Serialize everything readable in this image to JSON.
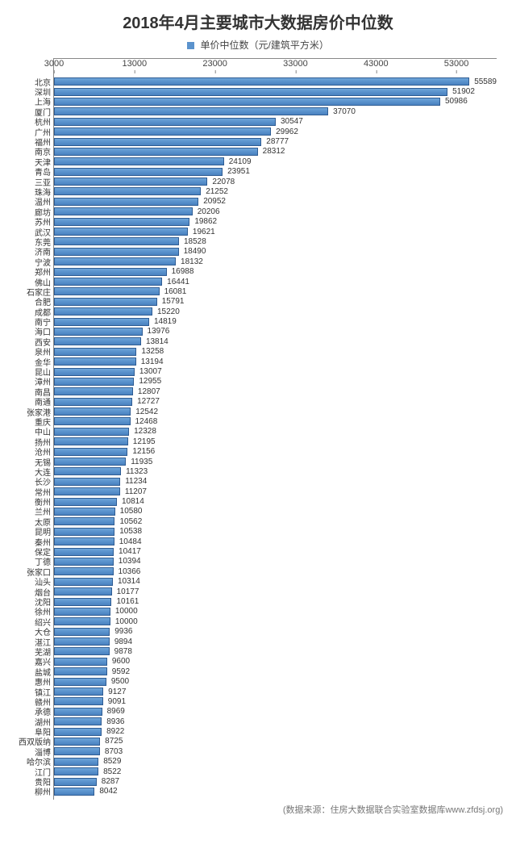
{
  "chart": {
    "type": "bar-horizontal",
    "title": "2018年4月主要城市大数据房价中位数",
    "legend_label": "单价中位数（元/建筑平方米）",
    "legend_swatch_color": "#5b93cd",
    "bar_fill": "#5b93cd",
    "bar_border": "#2f5c93",
    "axis_color": "#888888",
    "text_color": "#333333",
    "background_color": "#ffffff",
    "title_fontsize": 20,
    "label_fontsize": 11,
    "value_fontsize": 10,
    "x_axis": {
      "min": 3000,
      "max": 58000,
      "ticks": [
        3000,
        13000,
        23000,
        33000,
        43000,
        53000
      ]
    },
    "source": "(数据来源：住房大数据联合实验室数据库www.zfdsj.org)",
    "cities": [
      "北京",
      "深圳",
      "上海",
      "厦门",
      "杭州",
      "广州",
      "福州",
      "南京",
      "天津",
      "青岛",
      "三亚",
      "珠海",
      "温州",
      "廊坊",
      "苏州",
      "武汉",
      "东莞",
      "济南",
      "宁波",
      "郑州",
      "佛山",
      "石家庄",
      "合肥",
      "成都",
      "南宁",
      "海口",
      "西安",
      "泉州",
      "金华",
      "昆山",
      "漳州",
      "南昌",
      "南通",
      "张家港",
      "重庆",
      "中山",
      "扬州",
      "沧州",
      "无锡",
      "大连",
      "长沙",
      "常州",
      "衡州",
      "兰州",
      "太原",
      "昆明",
      "秦州",
      "保定",
      "丁德",
      "张家口",
      "汕头",
      "烟台",
      "沈阳",
      "徐州",
      "绍兴",
      "大仓",
      "湛江",
      "芜湖",
      "嘉兴",
      "盐城",
      "惠州",
      "镇江",
      "赣州",
      "承德",
      "湖州",
      "阜阳",
      "西双版纳",
      "淄博",
      "哈尔滨",
      "江门",
      "贵阳",
      "柳州"
    ],
    "values": [
      55589,
      51902,
      50986,
      37070,
      30547,
      29962,
      28777,
      28312,
      24109,
      23951,
      22078,
      21252,
      20952,
      20206,
      19862,
      19621,
      18528,
      18490,
      18132,
      16988,
      16441,
      16081,
      15791,
      15220,
      14819,
      13976,
      13814,
      13258,
      13194,
      13007,
      12955,
      12807,
      12727,
      12542,
      12468,
      12328,
      12195,
      12156,
      11935,
      11323,
      11234,
      11207,
      10814,
      10580,
      10562,
      10538,
      10484,
      10417,
      10394,
      10366,
      10314,
      10177,
      10161,
      10000,
      10000,
      9936,
      9894,
      9878,
      9600,
      9592,
      9500,
      9127,
      9091,
      8969,
      8936,
      8922,
      8725,
      8703,
      8529,
      8522,
      8287,
      8042
    ]
  }
}
